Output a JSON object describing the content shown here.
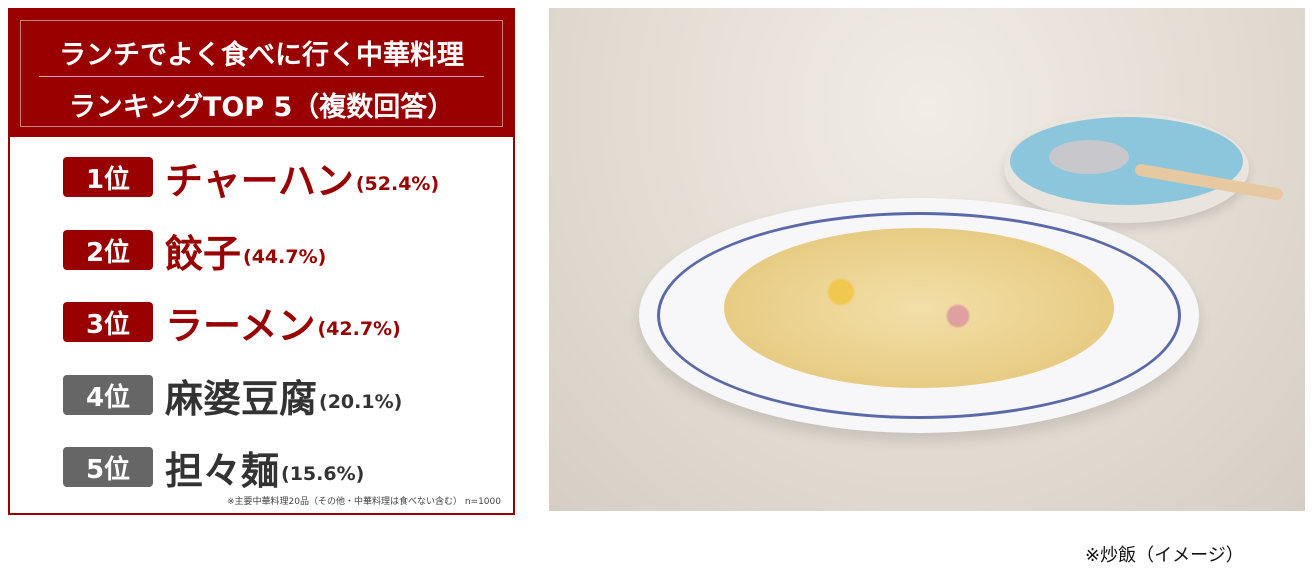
{
  "header": {
    "title_line1": "ランチでよく食べに行く中華料理",
    "title_line2": "ランキングTOP 5（複数回答）"
  },
  "ranking": [
    {
      "rank": "1位",
      "name": "チャーハン",
      "percent": "(52.4%)",
      "color": "#990000"
    },
    {
      "rank": "2位",
      "name": "餃子",
      "percent": "(44.7%)",
      "color": "#990000"
    },
    {
      "rank": "3位",
      "name": "ラーメン",
      "percent": "(42.7%)",
      "color": "#990000"
    },
    {
      "rank": "4位",
      "name": "麻婆豆腐",
      "percent": "(20.1%)",
      "color": "#666666"
    },
    {
      "rank": "5位",
      "name": "担々麺",
      "percent": "(15.6%)",
      "color": "#666666"
    }
  ],
  "note": "※主要中華料理20品（その他・中華料理は食べない含む） n=1000",
  "photo_caption": "※炒飯（イメージ）",
  "colors": {
    "accent": "#990000",
    "secondary": "#666666"
  }
}
